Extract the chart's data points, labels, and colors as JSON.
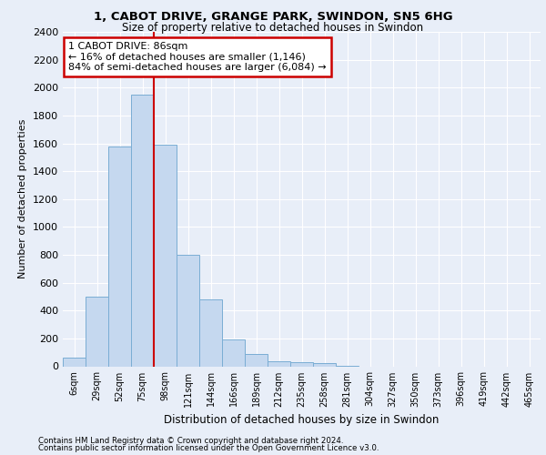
{
  "title_line1": "1, CABOT DRIVE, GRANGE PARK, SWINDON, SN5 6HG",
  "title_line2": "Size of property relative to detached houses in Swindon",
  "xlabel": "Distribution of detached houses by size in Swindon",
  "ylabel": "Number of detached properties",
  "categories": [
    "6sqm",
    "29sqm",
    "52sqm",
    "75sqm",
    "98sqm",
    "121sqm",
    "144sqm",
    "166sqm",
    "189sqm",
    "212sqm",
    "235sqm",
    "258sqm",
    "281sqm",
    "304sqm",
    "327sqm",
    "350sqm",
    "373sqm",
    "396sqm",
    "419sqm",
    "442sqm",
    "465sqm"
  ],
  "values": [
    60,
    500,
    1580,
    1950,
    1590,
    800,
    480,
    195,
    90,
    35,
    28,
    20,
    5,
    0,
    0,
    0,
    0,
    0,
    0,
    0,
    0
  ],
  "bar_color": "#c5d8ef",
  "bar_edge_color": "#7aadd4",
  "annotation_text": "1 CABOT DRIVE: 86sqm\n← 16% of detached houses are smaller (1,146)\n84% of semi-detached houses are larger (6,084) →",
  "annotation_box_color": "white",
  "annotation_box_edge_color": "#cc0000",
  "vline_color": "#cc0000",
  "vline_x": 3.48,
  "ylim": [
    0,
    2400
  ],
  "yticks": [
    0,
    200,
    400,
    600,
    800,
    1000,
    1200,
    1400,
    1600,
    1800,
    2000,
    2200,
    2400
  ],
  "background_color": "#e8eef8",
  "axes_background": "#e8eef8",
  "grid_color": "#ffffff",
  "footnote1": "Contains HM Land Registry data © Crown copyright and database right 2024.",
  "footnote2": "Contains public sector information licensed under the Open Government Licence v3.0."
}
